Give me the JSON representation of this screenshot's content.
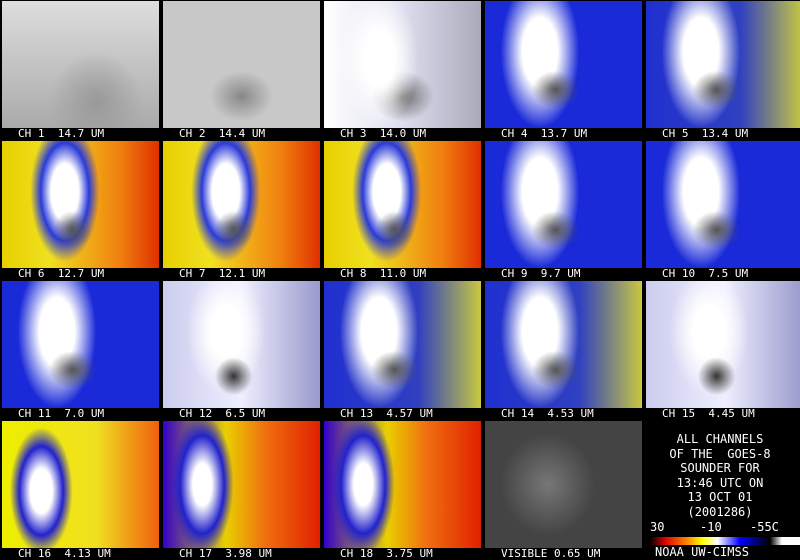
{
  "panels": [
    {
      "label": "CH 1  14.7 UM"
    },
    {
      "label": "CH 2  14.4 UM"
    },
    {
      "label": "CH 3  14.0 UM"
    },
    {
      "label": "CH 4  13.7 UM"
    },
    {
      "label": "CH 5  13.4 UM"
    },
    {
      "label": "CH 6  12.7 UM"
    },
    {
      "label": "CH 7  12.1 UM"
    },
    {
      "label": "CH 8  11.0 UM"
    },
    {
      "label": "CH 9  9.7 UM"
    },
    {
      "label": "CH 10  7.5 UM"
    },
    {
      "label": "CH 11  7.0 UM"
    },
    {
      "label": "CH 12  6.5 UM"
    },
    {
      "label": "CH 13  4.57 UM"
    },
    {
      "label": "CH 14  4.53 UM"
    },
    {
      "label": "CH 15  4.45 UM"
    },
    {
      "label": "CH 16  4.13 UM"
    },
    {
      "label": "CH 17  3.98 UM"
    },
    {
      "label": "CH 18  3.75 UM"
    },
    {
      "label": "VISIBLE 0.65 UM"
    }
  ],
  "legend": {
    "lines": [
      "ALL CHANNELS",
      "OF THE  GOES-8",
      "SOUNDER FOR",
      "13:46 UTC ON",
      "13 OCT 01",
      "(2001286)"
    ],
    "scale_labels": [
      "30",
      "-10",
      "-55C"
    ],
    "credit": "NOAA UW-CIMSS"
  }
}
